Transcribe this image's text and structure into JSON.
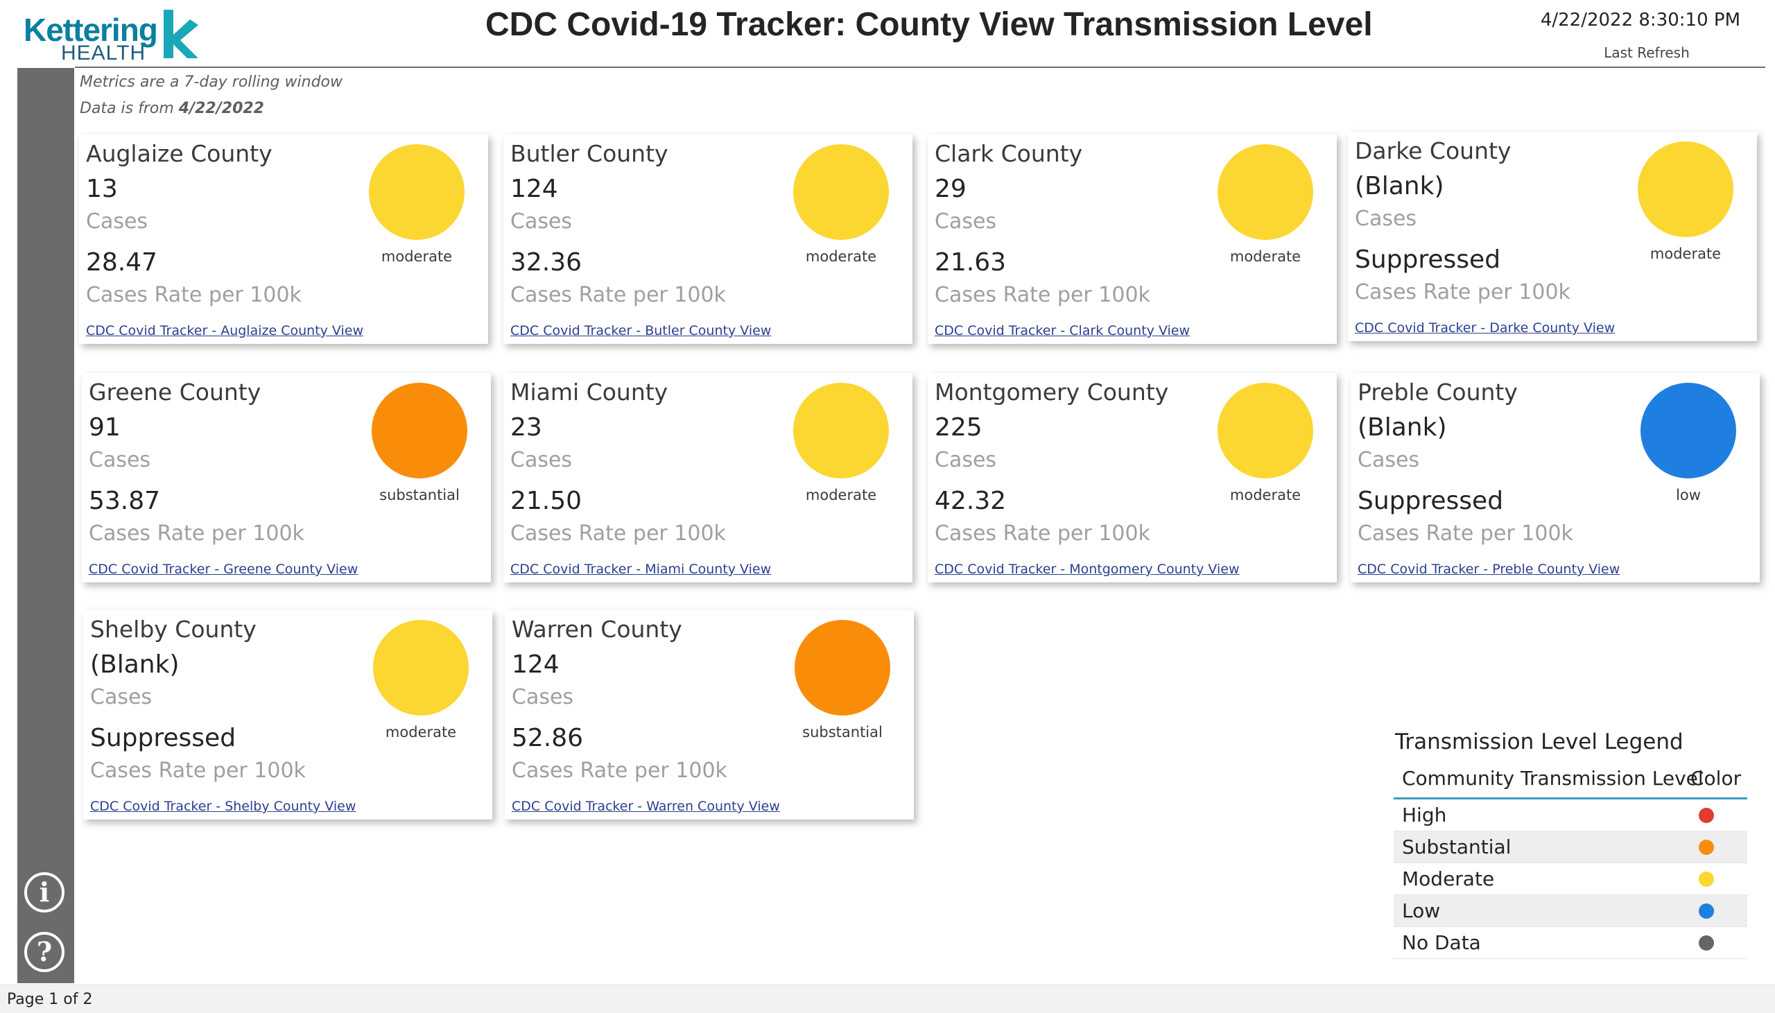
{
  "header": {
    "logo_top": "Kettering",
    "logo_bottom": "HEALTH",
    "title": "CDC Covid-19 Tracker: County View Transmission Level",
    "refresh_time": "4/22/2022 8:30:10 PM",
    "refresh_label": "Last Refresh"
  },
  "meta": {
    "window_note": "Metrics are a 7-day rolling window",
    "data_prefix": "Data is from ",
    "data_date": "4/22/2022"
  },
  "cases_label": "Cases",
  "rate_label": "Cases Rate per 100k",
  "colors": {
    "high": "#e03c31",
    "substantial": "#f98d0a",
    "moderate": "#fcd631",
    "low": "#1f7fe0",
    "no_data": "#666666"
  },
  "counties": [
    {
      "name": "Auglaize County",
      "cases": "13",
      "rate": "28.47",
      "level": "moderate",
      "color": "#fcd631",
      "link": "CDC Covid Tracker - Auglaize County View"
    },
    {
      "name": "Butler County",
      "cases": "124",
      "rate": "32.36",
      "level": "moderate",
      "color": "#fcd631",
      "link": "CDC Covid Tracker - Butler County View"
    },
    {
      "name": "Clark County",
      "cases": "29",
      "rate": "21.63",
      "level": "moderate",
      "color": "#fcd631",
      "link": "CDC Covid Tracker - Clark County View"
    },
    {
      "name": "Darke County",
      "cases": "(Blank)",
      "rate": "Suppressed",
      "level": "moderate",
      "color": "#fcd631",
      "link": "CDC Covid Tracker - Darke County View"
    },
    {
      "name": "Greene County",
      "cases": "91",
      "rate": "53.87",
      "level": "substantial",
      "color": "#f98d0a",
      "link": "CDC Covid Tracker - Greene County View"
    },
    {
      "name": "Miami County",
      "cases": "23",
      "rate": "21.50",
      "level": "moderate",
      "color": "#fcd631",
      "link": "CDC Covid Tracker - Miami County View"
    },
    {
      "name": "Montgomery County",
      "cases": "225",
      "rate": "42.32",
      "level": "moderate",
      "color": "#fcd631",
      "link": "CDC Covid Tracker - Montgomery County View"
    },
    {
      "name": "Preble County",
      "cases": "(Blank)",
      "rate": "Suppressed",
      "level": "low",
      "color": "#1f7fe0",
      "link": "CDC Covid Tracker - Preble County View"
    },
    {
      "name": "Shelby County",
      "cases": "(Blank)",
      "rate": "Suppressed",
      "level": "moderate",
      "color": "#fcd631",
      "link": "CDC Covid Tracker - Shelby County View"
    },
    {
      "name": "Warren County",
      "cases": "124",
      "rate": "52.86",
      "level": "substantial",
      "color": "#f98d0a",
      "link": "CDC Covid Tracker - Warren County View"
    }
  ],
  "legend": {
    "title": "Transmission Level Legend",
    "col_level": "Community Transmission Level",
    "col_color": "Color",
    "rows": [
      {
        "label": "High",
        "color": "#e03c31"
      },
      {
        "label": "Substantial",
        "color": "#f98d0a"
      },
      {
        "label": "Moderate",
        "color": "#fcd631"
      },
      {
        "label": "Low",
        "color": "#1f7fe0"
      },
      {
        "label": "No Data",
        "color": "#666666"
      }
    ]
  },
  "rail": {
    "info_icon": "info-icon",
    "help_icon": "help-icon"
  },
  "footer": {
    "page_indicator": "Page 1 of 2"
  }
}
